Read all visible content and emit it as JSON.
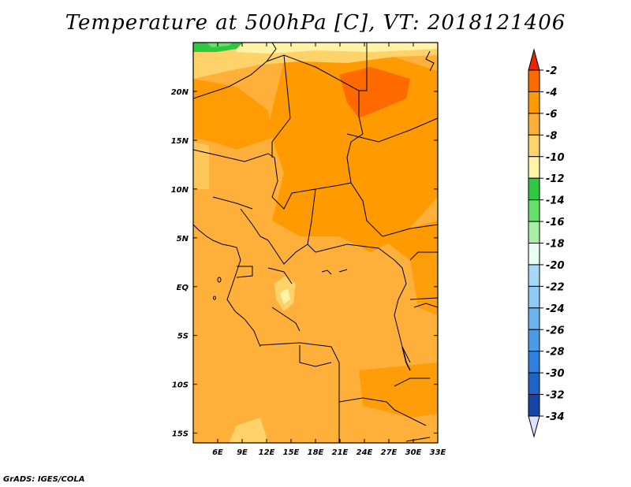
{
  "title": "Temperature at 500hPa [C], VT: 2018121406",
  "credit": "GrADS: IGES/COLA",
  "map": {
    "region_lon": [
      3,
      33
    ],
    "region_lat": [
      -16,
      25
    ],
    "lon_labels": [
      "6E",
      "9E",
      "12E",
      "15E",
      "18E",
      "21E",
      "24E",
      "27E",
      "30E",
      "33E"
    ],
    "lat_labels": [
      "20N",
      "15N",
      "10N",
      "5N",
      "EQ",
      "5S",
      "10S",
      "15S"
    ]
  },
  "colorbar": {
    "labels": [
      "-2",
      "-4",
      "-6",
      "-8",
      "-10",
      "-12",
      "-14",
      "-16",
      "-18",
      "-20",
      "-22",
      "-24",
      "-26",
      "-28",
      "-30",
      "-32",
      "-34"
    ],
    "colors": [
      "#ff6a00",
      "#ff9a00",
      "#ffb03a",
      "#ffd26a",
      "#fff3a6",
      "#2fc840",
      "#66e06a",
      "#a6f0a6",
      "#e6fff0",
      "#a8d8f8",
      "#8ecaf6",
      "#6ab4f0",
      "#4a9ce8",
      "#2f80e0",
      "#1e64c8",
      "#1446a8",
      "#0a1e7a"
    ],
    "top_arrow_color": "#ee2200",
    "bottom_arrow_color": "#e0e0ff"
  }
}
